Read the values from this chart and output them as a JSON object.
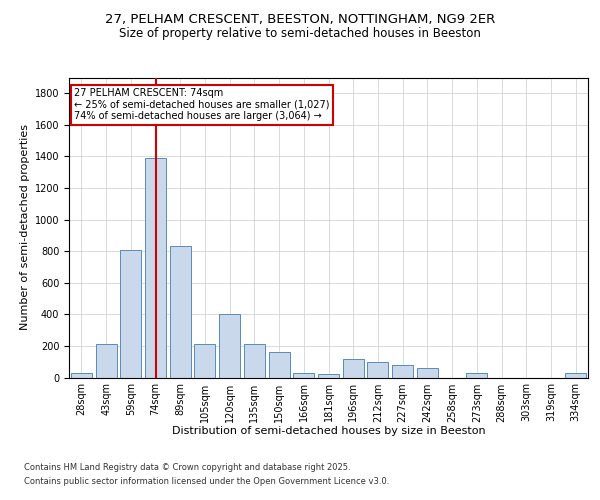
{
  "title1": "27, PELHAM CRESCENT, BEESTON, NOTTINGHAM, NG9 2ER",
  "title2": "Size of property relative to semi-detached houses in Beeston",
  "xlabel": "Distribution of semi-detached houses by size in Beeston",
  "ylabel": "Number of semi-detached properties",
  "categories": [
    "28sqm",
    "43sqm",
    "59sqm",
    "74sqm",
    "89sqm",
    "105sqm",
    "120sqm",
    "135sqm",
    "150sqm",
    "166sqm",
    "181sqm",
    "196sqm",
    "212sqm",
    "227sqm",
    "242sqm",
    "258sqm",
    "273sqm",
    "288sqm",
    "303sqm",
    "319sqm",
    "334sqm"
  ],
  "values": [
    30,
    210,
    810,
    1390,
    830,
    210,
    400,
    210,
    160,
    30,
    20,
    120,
    100,
    80,
    60,
    0,
    30,
    0,
    0,
    0,
    30
  ],
  "bar_color": "#c9d9eb",
  "bar_edge_color": "#5a8ab5",
  "red_line_index": 3,
  "annotation_text1": "27 PELHAM CRESCENT: 74sqm",
  "annotation_text2": "← 25% of semi-detached houses are smaller (1,027)",
  "annotation_text3": "74% of semi-detached houses are larger (3,064) →",
  "annotation_box_color": "#ffffff",
  "annotation_box_edge": "#cc0000",
  "red_line_color": "#cc0000",
  "ylim": [
    0,
    1900
  ],
  "yticks": [
    0,
    200,
    400,
    600,
    800,
    1000,
    1200,
    1400,
    1600,
    1800
  ],
  "background_color": "#ffffff",
  "grid_color": "#cccccc",
  "footer1": "Contains HM Land Registry data © Crown copyright and database right 2025.",
  "footer2": "Contains public sector information licensed under the Open Government Licence v3.0.",
  "title1_fontsize": 9.5,
  "title2_fontsize": 8.5,
  "axis_label_fontsize": 8,
  "tick_fontsize": 7,
  "annotation_fontsize": 7,
  "footer_fontsize": 6
}
